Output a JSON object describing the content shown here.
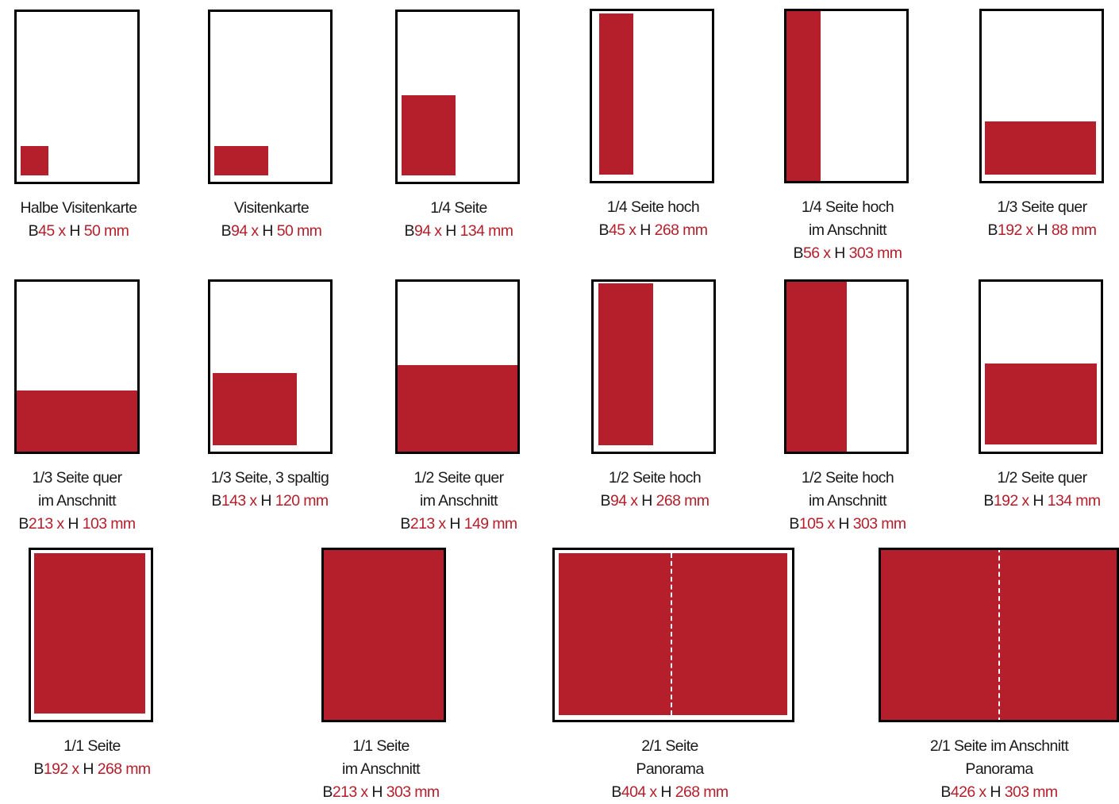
{
  "colors": {
    "ad_fill": "#b51f2b",
    "frame": "#000000",
    "text": "#1a1a1a"
  },
  "units": {
    "width_prefix": "B",
    "times": "x",
    "height_prefix": "H",
    "unit": "mm"
  },
  "formats": [
    {
      "lines": [
        "Halbe Visitenkarte"
      ],
      "width": "45",
      "height": "50"
    },
    {
      "lines": [
        "Visitenkarte"
      ],
      "width": "94",
      "height": "50"
    },
    {
      "lines": [
        "1/4 Seite"
      ],
      "width": "94",
      "height": "134"
    },
    {
      "lines": [
        "1/4 Seite hoch"
      ],
      "width": "45",
      "height": "268"
    },
    {
      "lines": [
        "1/4 Seite hoch",
        "im Anschnitt"
      ],
      "width": "56",
      "height": "303"
    },
    {
      "lines": [
        "1/3 Seite quer"
      ],
      "width": "192",
      "height": "88"
    },
    {
      "lines": [
        "1/3 Seite quer",
        "im Anschnitt"
      ],
      "width": "213",
      "height": "103"
    },
    {
      "lines": [
        "1/3 Seite, 3 spaltig"
      ],
      "width": "143",
      "height": "120"
    },
    {
      "lines": [
        "1/2 Seite quer",
        "im Anschnitt"
      ],
      "width": "213",
      "height": "149"
    },
    {
      "lines": [
        "1/2 Seite hoch"
      ],
      "width": "94",
      "height": "268"
    },
    {
      "lines": [
        "1/2 Seite hoch",
        "im Anschnitt"
      ],
      "width": "105",
      "height": "303"
    },
    {
      "lines": [
        "1/2 Seite quer"
      ],
      "width": "192",
      "height": "134"
    },
    {
      "lines": [
        "1/1 Seite"
      ],
      "width": "192",
      "height": "268"
    },
    {
      "lines": [
        "1/1 Seite",
        "im Anschnitt"
      ],
      "width": "213",
      "height": "303"
    },
    {
      "lines": [
        "2/1 Seite",
        "Panorama"
      ],
      "width": "404",
      "height": "268"
    },
    {
      "lines": [
        "2/1 Seite im Anschnitt",
        "Panorama"
      ],
      "width": "426",
      "height": "303"
    }
  ]
}
